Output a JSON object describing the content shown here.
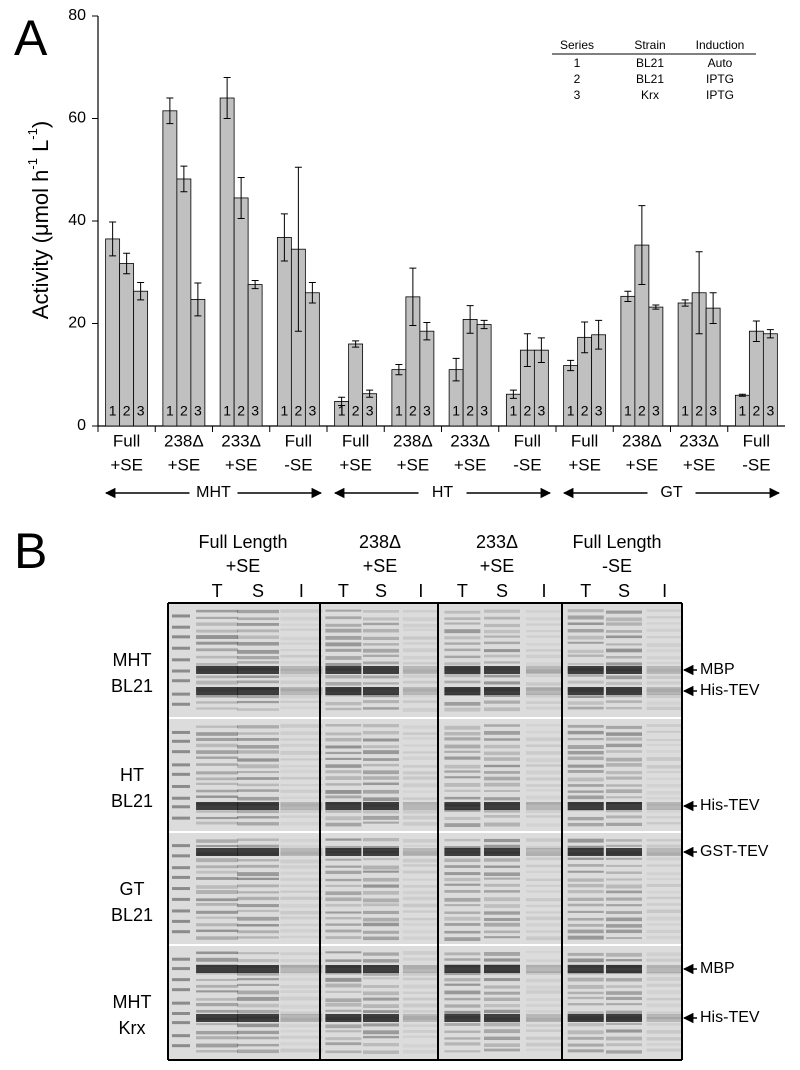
{
  "chart_data": {
    "type": "bar",
    "panel": "A",
    "y_label": [
      "Activity (μmol h",
      "-1",
      " L",
      "-1",
      ")"
    ],
    "categories": [
      [
        "Full",
        "+SE"
      ],
      [
        "238Δ",
        "+SE"
      ],
      [
        "233Δ",
        "+SE"
      ],
      [
        "Full",
        "-SE"
      ],
      [
        "Full",
        "+SE"
      ],
      [
        "238Δ",
        "+SE"
      ],
      [
        "233Δ",
        "+SE"
      ],
      [
        "Full",
        "-SE"
      ],
      [
        "Full",
        "+SE"
      ],
      [
        "238Δ",
        "+SE"
      ],
      [
        "233Δ",
        "+SE"
      ],
      [
        "Full",
        "-SE"
      ]
    ],
    "groups": [
      "MHT",
      "HT",
      "GT"
    ],
    "legend_header": [
      "Series",
      "Strain",
      "Induction"
    ],
    "series": [
      {
        "name": "1",
        "strain": "BL21",
        "induction": "Auto",
        "color": "#c0c0c0",
        "values": [
          36.5,
          61.5,
          64,
          36.8,
          4.8,
          11,
          11,
          6.2,
          11.8,
          25.3,
          24,
          6
        ],
        "errors": [
          3.3,
          2.5,
          4,
          4.6,
          0.8,
          1,
          2.2,
          0.8,
          1,
          1,
          0.6,
          0.2
        ]
      },
      {
        "name": "2",
        "strain": "BL21",
        "induction": "IPTG",
        "color": "#c0c0c0",
        "values": [
          31.7,
          48.2,
          44.5,
          34.5,
          16,
          25.2,
          20.8,
          14.8,
          17.3,
          35.3,
          26,
          18.5
        ],
        "errors": [
          2,
          2.5,
          4,
          16,
          0.6,
          5.6,
          2.7,
          3.2,
          3,
          7.7,
          8,
          2
        ]
      },
      {
        "name": "3",
        "strain": "Krx",
        "induction": "IPTG",
        "color": "#c0c0c0",
        "values": [
          26.3,
          24.7,
          27.6,
          26,
          6.3,
          18.5,
          19.8,
          14.8,
          17.8,
          23.2,
          23,
          18
        ],
        "errors": [
          1.7,
          3.2,
          0.8,
          2,
          0.7,
          1.7,
          0.8,
          2.4,
          2.8,
          0.4,
          3,
          0.8
        ]
      }
    ],
    "ylim": [
      0,
      80
    ],
    "yticks": [
      0,
      20,
      40,
      60,
      80
    ]
  },
  "panel_b": {
    "panel": "B",
    "columns": [
      [
        "Full Length",
        "+SE"
      ],
      [
        "238Δ",
        "+SE"
      ],
      [
        "233Δ",
        "+SE"
      ],
      [
        "Full Length",
        "-SE"
      ]
    ],
    "lanes": [
      "T",
      "S",
      "I"
    ],
    "rows": [
      {
        "label": [
          "MHT",
          "BL21"
        ],
        "markers": [
          "MBP",
          "His-TEV"
        ]
      },
      {
        "label": [
          "HT",
          "BL21"
        ],
        "markers": [
          "His-TEV"
        ]
      },
      {
        "label": [
          "GT",
          "BL21"
        ],
        "markers": [
          "GST-TEV"
        ]
      },
      {
        "label": [
          "MHT",
          "Krx"
        ],
        "markers": [
          "MBP",
          "His-TEV"
        ]
      }
    ]
  }
}
